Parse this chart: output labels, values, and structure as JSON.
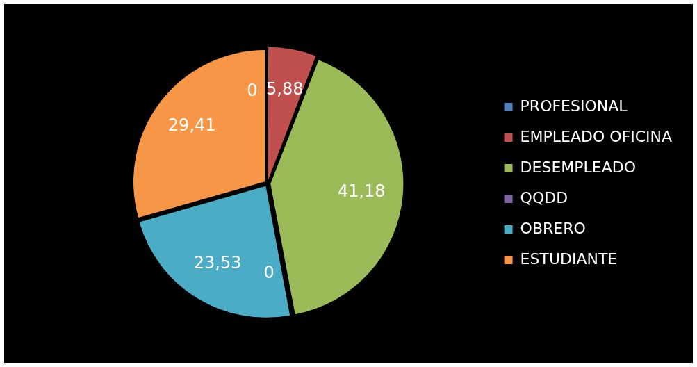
{
  "chart_data": {
    "type": "pie",
    "categories": [
      "PROFESIONAL",
      "EMPLEADO OFICINA",
      "DESEMPLEADO",
      "QQDD",
      "OBRERO",
      "ESTUDIANTE"
    ],
    "values": [
      0,
      5.88,
      41.18,
      0,
      23.53,
      29.41
    ],
    "value_labels": [
      "0",
      "5,88",
      "41,18",
      "0",
      "23,53",
      "29,41"
    ],
    "colors": [
      "#4f81bd",
      "#c0504d",
      "#9bbb59",
      "#8064a2",
      "#4bacc6",
      "#f79646"
    ],
    "legend": "right"
  }
}
